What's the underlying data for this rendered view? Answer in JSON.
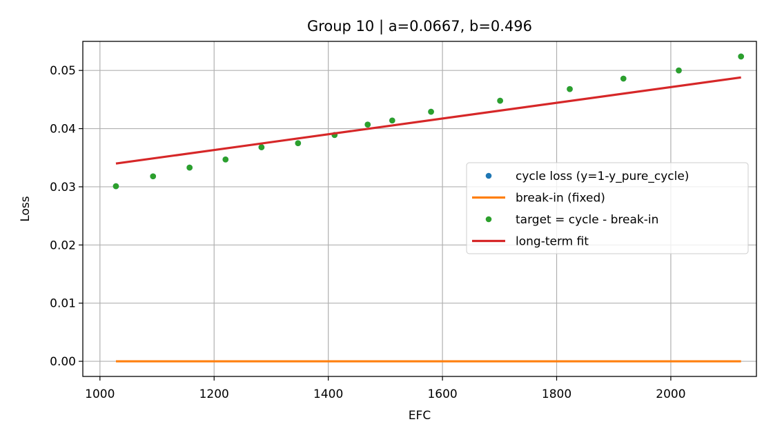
{
  "chart_data": {
    "type": "line",
    "title": "Group 10 | a=0.0667, b=0.496",
    "xlabel": "EFC",
    "ylabel": "Loss",
    "xlim": [
      970,
      2150
    ],
    "ylim": [
      -0.0026,
      0.055
    ],
    "xticks": [
      1000,
      1200,
      1400,
      1600,
      1800,
      2000
    ],
    "xtick_labels": [
      "1000",
      "1200",
      "1400",
      "1600",
      "1800",
      "2000"
    ],
    "yticks": [
      0.0,
      0.01,
      0.02,
      0.03,
      0.04,
      0.05
    ],
    "ytick_labels": [
      "0.00",
      "0.01",
      "0.02",
      "0.03",
      "0.04",
      "0.05"
    ],
    "grid": true,
    "legend_position": "center-right",
    "series": [
      {
        "name": "cycle loss (y=1-y_pure_cycle)",
        "kind": "scatter",
        "color": "#1f77b4",
        "x": [
          1028,
          1093,
          1157,
          1220,
          1283,
          1347,
          1411,
          1469,
          1512,
          1580,
          1701,
          1823,
          1917,
          2014,
          2123
        ],
        "y": [
          0.0301,
          0.0318,
          0.0333,
          0.0347,
          0.0368,
          0.0375,
          0.0389,
          0.0407,
          0.0414,
          0.0429,
          0.0448,
          0.0468,
          0.0486,
          0.05,
          0.0524
        ]
      },
      {
        "name": "break-in (fixed)",
        "kind": "line",
        "color": "#ff7f0e",
        "x": [
          1028,
          2123
        ],
        "y": [
          0.0,
          0.0
        ]
      },
      {
        "name": "target = cycle - break-in",
        "kind": "scatter",
        "color": "#2ca02c",
        "x": [
          1028,
          1093,
          1157,
          1220,
          1283,
          1347,
          1411,
          1469,
          1512,
          1580,
          1701,
          1823,
          1917,
          2014,
          2123
        ],
        "y": [
          0.0301,
          0.0318,
          0.0333,
          0.0347,
          0.0368,
          0.0375,
          0.0389,
          0.0407,
          0.0414,
          0.0429,
          0.0448,
          0.0468,
          0.0486,
          0.05,
          0.0524
        ]
      },
      {
        "name": "long-term fit",
        "kind": "line",
        "color": "#d62728",
        "x": [
          1028,
          2123
        ],
        "y": [
          0.034,
          0.0488
        ]
      }
    ]
  }
}
